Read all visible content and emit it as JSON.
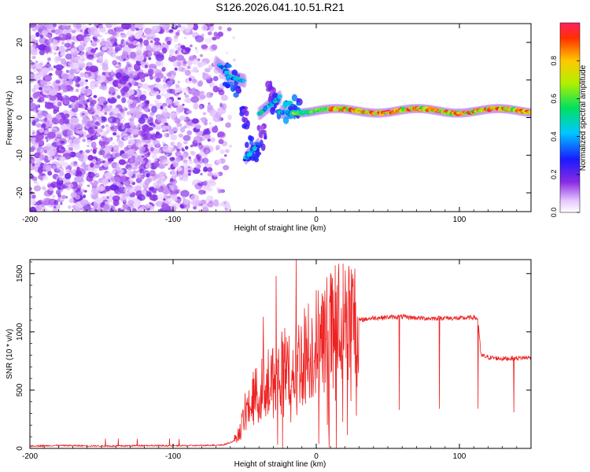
{
  "figure_title": "S126.2026.041.10.51.R21",
  "colors": {
    "snr_line": "#ee2020",
    "frame": "#000000",
    "background": "#ffffff"
  },
  "chart_data": [
    {
      "type": "heatmap",
      "title": "S126.2026.041.10.51.R21",
      "xlabel": "Height of straight line (km)",
      "ylabel": "Frequency (Hz)",
      "xlim": [
        -200,
        150
      ],
      "ylim": [
        -25,
        25
      ],
      "xticks": [
        -200,
        -100,
        0,
        100
      ],
      "yticks": [
        -20,
        -10,
        0,
        10,
        20
      ],
      "colorbar": {
        "label": "Normalized spectral amplitude",
        "range": [
          0,
          1
        ],
        "ticks": [
          0.0,
          0.2,
          0.4,
          0.6,
          0.8
        ],
        "colormap": "rainbow (white-violet-blue-cyan-green-yellow-red)"
      },
      "description_points": [
        {
          "height_km": -65,
          "freq_hz": 12,
          "amp": 0.45
        },
        {
          "height_km": -55,
          "freq_hz": 10,
          "amp": 0.5
        },
        {
          "height_km": -45,
          "freq_hz": -9,
          "amp": 0.35
        },
        {
          "height_km": -30,
          "freq_hz": 3,
          "amp": 0.4
        },
        {
          "height_km": 0,
          "freq_hz": 2,
          "amp": 0.6
        },
        {
          "height_km": 20,
          "freq_hz": 1,
          "amp": 0.9
        },
        {
          "height_km": 60,
          "freq_hz": 1.5,
          "amp": 1.0
        },
        {
          "height_km": 80,
          "freq_hz": 2.5,
          "amp": 0.95
        },
        {
          "height_km": 120,
          "freq_hz": 1.5,
          "amp": 0.95
        },
        {
          "height_km": 145,
          "freq_hz": 1.5,
          "amp": 0.9
        }
      ]
    },
    {
      "type": "line",
      "xlabel": "Height of straight line (km)",
      "ylabel": "SNR (10 * v/v)",
      "xlim": [
        -200,
        150
      ],
      "ylim": [
        0,
        1620
      ],
      "xticks": [
        -200,
        -100,
        0,
        100
      ],
      "yticks": [
        0,
        500,
        1000,
        1500
      ],
      "series": [
        {
          "name": "SNR",
          "x": [
            -200,
            -180,
            -160,
            -140,
            -120,
            -100,
            -80,
            -65,
            -58,
            -53,
            -50,
            -45,
            -40,
            -35,
            -30,
            -25,
            -20,
            -15,
            -10,
            -5,
            0,
            5,
            10,
            15,
            20,
            25,
            30,
            40,
            50,
            60,
            70,
            80,
            90,
            100,
            110,
            113,
            115,
            120,
            130,
            140,
            150
          ],
          "y": [
            20,
            25,
            22,
            20,
            25,
            22,
            25,
            30,
            60,
            150,
            300,
            420,
            480,
            550,
            600,
            650,
            700,
            720,
            780,
            850,
            900,
            950,
            1000,
            1050,
            1080,
            1090,
            1100,
            1120,
            1125,
            1130,
            1120,
            1115,
            1120,
            1115,
            1125,
            1110,
            800,
            780,
            770,
            775,
            780
          ]
        }
      ],
      "spikes": [
        {
          "x": -37,
          "y": 1130
        },
        {
          "x": -28,
          "y": 1480
        },
        {
          "x": -14,
          "y": 1620
        },
        {
          "x": 28,
          "y": 280
        },
        {
          "x": 58,
          "y": 330
        },
        {
          "x": 86,
          "y": 340
        },
        {
          "x": 113,
          "y": 340
        },
        {
          "x": 138,
          "y": 310
        }
      ]
    }
  ]
}
